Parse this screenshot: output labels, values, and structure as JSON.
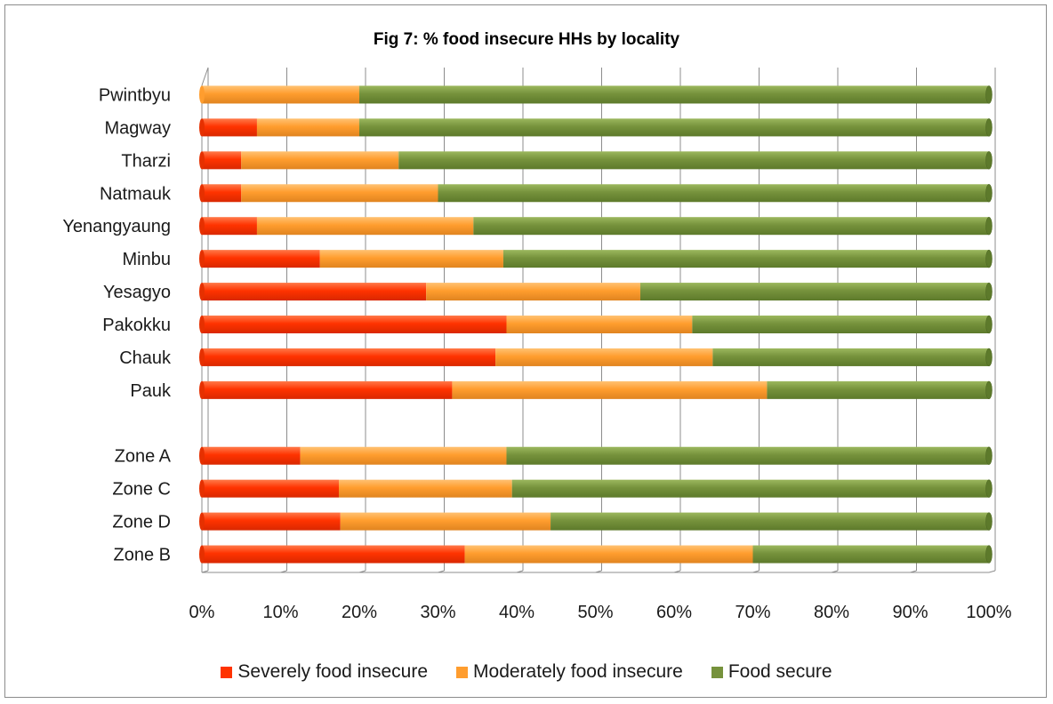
{
  "chart_data": {
    "type": "bar",
    "orientation": "horizontal",
    "stacked": "percent",
    "title": "Fig 7: % food insecure HHs by locality",
    "categories": [
      "Pwintbyu",
      "Magway",
      "Tharzi",
      "Natmauk",
      "Yenangyaung",
      "Minbu",
      "Yesagyo",
      "Pakokku",
      "Chauk",
      "Pauk",
      "",
      "Zone A",
      "Zone C",
      "Zone D",
      "Zone B"
    ],
    "series": [
      {
        "name": "Severely food insecure",
        "color": "#ff3a00",
        "values": [
          0,
          7,
          5,
          5,
          7,
          15,
          28.5,
          38.7,
          37.3,
          31.8,
          null,
          12.5,
          17.4,
          17.6,
          33.4
        ]
      },
      {
        "name": "Moderately food insecure",
        "color": "#ff9f33",
        "values": [
          20,
          13,
          20,
          25,
          27.5,
          23.3,
          27.2,
          23.6,
          27.6,
          40,
          null,
          26.2,
          22,
          26.7,
          36.6
        ]
      },
      {
        "name": "Food secure",
        "color": "#76923c",
        "values": [
          80,
          80,
          75,
          70,
          65.5,
          61.7,
          44.3,
          37.7,
          35.1,
          28.2,
          null,
          61.3,
          60.6,
          55.7,
          30
        ]
      }
    ],
    "xaxis": {
      "ticks": [
        "0%",
        "10%",
        "20%",
        "30%",
        "40%",
        "50%",
        "60%",
        "70%",
        "80%",
        "90%",
        "100%"
      ],
      "range": [
        0,
        100
      ]
    },
    "grid": true,
    "legend_position": "bottom"
  }
}
